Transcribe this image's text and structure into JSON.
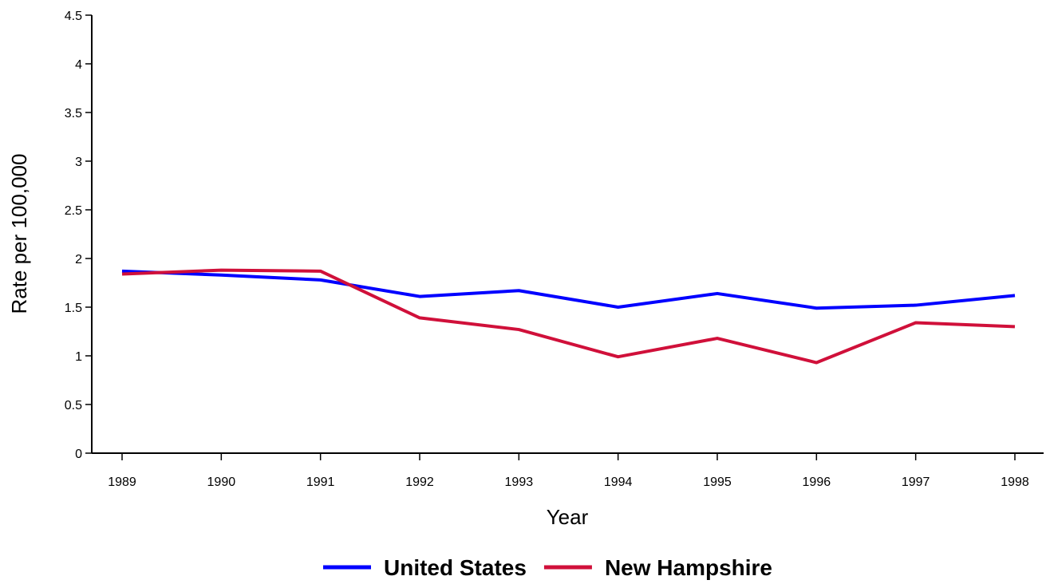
{
  "chart_data": {
    "type": "line",
    "xlabel": "Year",
    "ylabel": "Rate per 100,000",
    "categories": [
      "1989",
      "1990",
      "1991",
      "1992",
      "1993",
      "1994",
      "1995",
      "1996",
      "1997",
      "1998"
    ],
    "series": [
      {
        "name": "United States",
        "color": "#0000ff",
        "values": [
          1.87,
          1.83,
          1.78,
          1.61,
          1.67,
          1.5,
          1.64,
          1.49,
          1.52,
          1.62
        ]
      },
      {
        "name": "New Hampshire",
        "color": "#d0103a",
        "values": [
          1.84,
          1.88,
          1.87,
          1.39,
          1.27,
          0.99,
          1.18,
          0.93,
          1.34,
          1.3
        ]
      }
    ],
    "ylim": [
      0,
      4.5
    ],
    "yticks": [
      0,
      0.5,
      1,
      1.5,
      2,
      2.5,
      3,
      3.5,
      4,
      4.5
    ]
  }
}
